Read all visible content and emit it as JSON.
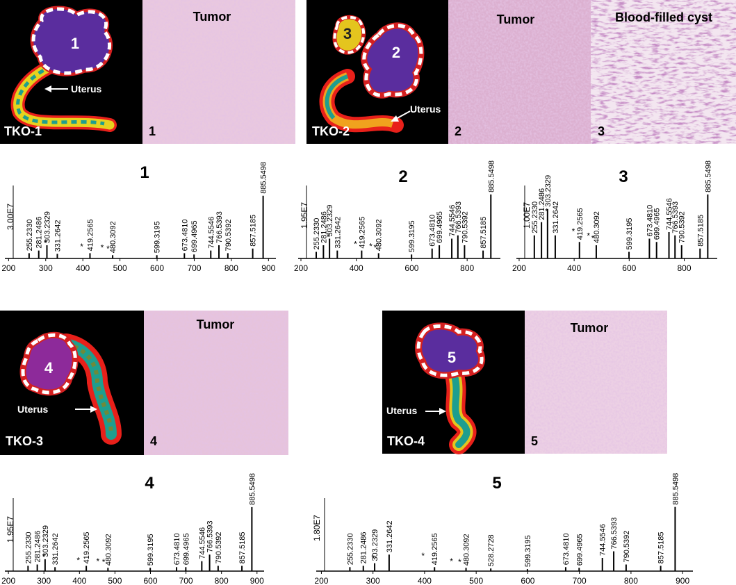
{
  "panels": [
    {
      "mouse": "TKO-1",
      "blob": "1",
      "uterus": "Uterus",
      "histology": [
        {
          "caption": "Tumor",
          "number": "1"
        }
      ]
    },
    {
      "mouse": "TKO-2",
      "blobs": [
        "3",
        "2"
      ],
      "uterus": "Uterus",
      "histology": [
        {
          "caption": "Tumor",
          "number": "2"
        },
        {
          "caption": "Blood-filled cyst",
          "number": "3"
        }
      ]
    },
    {
      "mouse": "TKO-3",
      "blob": "4",
      "uterus": "Uterus",
      "histology": [
        {
          "caption": "Tumor",
          "number": "4"
        }
      ]
    },
    {
      "mouse": "TKO-4",
      "blob": "5",
      "uterus": "Uterus",
      "histology": [
        {
          "caption": "Tumor",
          "number": "5"
        }
      ]
    }
  ],
  "chart_data": [
    {
      "type": "spectrum",
      "title": "1",
      "ylabel": "3.00E7",
      "color": "#000000",
      "xlim": [
        190,
        920
      ],
      "ylim": [
        0,
        30000000
      ],
      "xticks": [
        200,
        300,
        400,
        500,
        600,
        700,
        800,
        900
      ],
      "x": [
        {
          "value": 255.233,
          "label": "255.2330"
        },
        {
          "value": 281.2486,
          "label": "281.2486"
        },
        {
          "value": 303.2329,
          "label": "303.2329"
        },
        {
          "value": 331.2642,
          "label": "331.2642"
        },
        {
          "value": 419.2565,
          "label": "419.2565"
        },
        {
          "value": 480.3092,
          "label": "480.3092"
        },
        {
          "value": 599.3195,
          "label": "599.3195"
        },
        {
          "value": 673.481,
          "label": "673.4810"
        },
        {
          "value": 699.4965,
          "label": "699.4965"
        },
        {
          "value": 744.5546,
          "label": "744.5546"
        },
        {
          "value": 766.5393,
          "label": "766.5393"
        },
        {
          "value": 790.5392,
          "label": "790.5392"
        },
        {
          "value": 857.5185,
          "label": "857.5185"
        },
        {
          "value": 885.5498,
          "label": "885.5498"
        }
      ],
      "values": [
        2400000,
        3600000,
        6000000,
        2100000,
        2400000,
        1500000,
        1500000,
        2400000,
        1800000,
        3600000,
        6000000,
        2400000,
        4500000,
        28500000
      ],
      "annotations": [
        {
          "text": "*",
          "x": 300,
          "y": 5000000
        },
        {
          "text": "*",
          "x": 397,
          "y": 3500000
        },
        {
          "text": "*",
          "x": 452,
          "y": 3000000
        },
        {
          "text": "*",
          "x": 468,
          "y": 2500000
        }
      ]
    },
    {
      "type": "spectrum",
      "title": "2",
      "ylabel": "1.95E7",
      "color": "#000000",
      "xlim": [
        190,
        920
      ],
      "ylim": [
        0,
        19500000
      ],
      "xticks": [
        200,
        400,
        600,
        800
      ],
      "x": [
        {
          "value": 255.233,
          "label": "255.2330"
        },
        {
          "value": 281.2486,
          "label": "281.2486"
        },
        {
          "value": 303.2329,
          "label": "303.2329"
        },
        {
          "value": 331.2642,
          "label": "331.2642"
        },
        {
          "value": 419.2565,
          "label": "419.2565"
        },
        {
          "value": 480.3092,
          "label": "480.3092"
        },
        {
          "value": 599.3195,
          "label": "599.3195"
        },
        {
          "value": 673.481,
          "label": "673.4810"
        },
        {
          "value": 699.4965,
          "label": "699.4965"
        },
        {
          "value": 744.5546,
          "label": "744.5546"
        },
        {
          "value": 766.5393,
          "label": "766.5393"
        },
        {
          "value": 790.5392,
          "label": "790.5392"
        },
        {
          "value": 857.5185,
          "label": "857.5185"
        },
        {
          "value": 885.5498,
          "label": "885.5498"
        }
      ],
      "values": [
        1950000,
        3900000,
        5850000,
        2340000,
        2340000,
        1560000,
        1170000,
        2925000,
        3900000,
        5850000,
        6825000,
        3900000,
        2340000,
        18900000
      ],
      "annotations": [
        {
          "text": "*",
          "x": 300,
          "y": 5000000
        },
        {
          "text": "*",
          "x": 397,
          "y": 3000000
        },
        {
          "text": "*",
          "x": 452,
          "y": 2400000
        },
        {
          "text": "*",
          "x": 468,
          "y": 2000000
        }
      ]
    },
    {
      "type": "spectrum",
      "title": "3",
      "ylabel": "1.00E7",
      "color": "#000000",
      "xlim": [
        190,
        920
      ],
      "ylim": [
        0,
        10000000
      ],
      "xticks": [
        200,
        400,
        600,
        800
      ],
      "x": [
        {
          "value": 255.233,
          "label": "255.2330"
        },
        {
          "value": 281.2486,
          "label": "281.2486"
        },
        {
          "value": 303.2329,
          "label": "303.2329"
        },
        {
          "value": 331.2642,
          "label": "331.2642"
        },
        {
          "value": 419.2565,
          "label": "419.2565"
        },
        {
          "value": 480.3092,
          "label": "480.3092"
        },
        {
          "value": 599.3195,
          "label": "599.3195"
        },
        {
          "value": 673.481,
          "label": "673.4810"
        },
        {
          "value": 699.4965,
          "label": "699.4965"
        },
        {
          "value": 744.5546,
          "label": "744.5546"
        },
        {
          "value": 766.5393,
          "label": "766.5393"
        },
        {
          "value": 790.5392,
          "label": "790.5392"
        },
        {
          "value": 857.5185,
          "label": "857.5185"
        },
        {
          "value": 885.5498,
          "label": "885.5498"
        }
      ],
      "values": [
        3500000,
        5500000,
        7500000,
        3500000,
        2500000,
        2000000,
        1000000,
        3000000,
        2500000,
        4000000,
        3500000,
        2000000,
        1500000,
        9700000
      ],
      "annotations": [
        {
          "text": "*",
          "x": 300,
          "y": 6500000
        },
        {
          "text": "*",
          "x": 397,
          "y": 3500000
        },
        {
          "text": "*",
          "x": 452,
          "y": 2800000
        },
        {
          "text": "*",
          "x": 468,
          "y": 2400000
        }
      ]
    },
    {
      "type": "spectrum",
      "title": "4",
      "ylabel": "1.95E7",
      "color": "#000000",
      "xlim": [
        190,
        920
      ],
      "ylim": [
        0,
        19500000
      ],
      "xticks": [
        200,
        300,
        400,
        500,
        600,
        700,
        800,
        900
      ],
      "x": [
        {
          "value": 255.233,
          "label": "255.2330"
        },
        {
          "value": 281.2486,
          "label": "281.2486"
        },
        {
          "value": 303.2329,
          "label": "303.2329"
        },
        {
          "value": 331.2642,
          "label": "331.2642"
        },
        {
          "value": 419.2565,
          "label": "419.2565"
        },
        {
          "value": 480.3092,
          "label": "480.3092"
        },
        {
          "value": 599.3195,
          "label": "599.3195"
        },
        {
          "value": 673.481,
          "label": "673.4810"
        },
        {
          "value": 699.4965,
          "label": "699.4965"
        },
        {
          "value": 744.5546,
          "label": "744.5546"
        },
        {
          "value": 766.5393,
          "label": "766.5393"
        },
        {
          "value": 790.5392,
          "label": "790.5392"
        },
        {
          "value": 857.5185,
          "label": "857.5185"
        },
        {
          "value": 885.5498,
          "label": "885.5498"
        }
      ],
      "values": [
        1560000,
        1950000,
        3510000,
        1170000,
        1560000,
        975000,
        975000,
        1170000,
        1170000,
        2925000,
        4875000,
        1560000,
        1560000,
        18900000
      ],
      "annotations": [
        {
          "text": "*",
          "x": 300,
          "y": 3000000
        },
        {
          "text": "*",
          "x": 397,
          "y": 2000000
        },
        {
          "text": "*",
          "x": 452,
          "y": 1600000
        },
        {
          "text": "*",
          "x": 468,
          "y": 1400000
        }
      ]
    },
    {
      "type": "spectrum",
      "title": "5",
      "ylabel": "1.80E7",
      "color": "#000000",
      "xlim": [
        190,
        920
      ],
      "ylim": [
        0,
        18000000
      ],
      "xticks": [
        200,
        300,
        400,
        500,
        600,
        700,
        800,
        900
      ],
      "x": [
        {
          "value": 255.233,
          "label": "255.2330"
        },
        {
          "value": 281.2486,
          "label": "281.2486"
        },
        {
          "value": 303.2329,
          "label": "303.2329"
        },
        {
          "value": 331.2642,
          "label": "331.2642"
        },
        {
          "value": 419.2565,
          "label": "419.2565"
        },
        {
          "value": 480.3092,
          "label": "480.3092"
        },
        {
          "value": 528.2728,
          "label": "528.2728"
        },
        {
          "value": 599.3195,
          "label": "599.3195"
        },
        {
          "value": 673.481,
          "label": "673.4810"
        },
        {
          "value": 699.4965,
          "label": "699.4965"
        },
        {
          "value": 744.5546,
          "label": "744.5546"
        },
        {
          "value": 766.5393,
          "label": "766.5393"
        },
        {
          "value": 790.5392,
          "label": "790.5392"
        },
        {
          "value": 857.5185,
          "label": "857.5185"
        },
        {
          "value": 885.5498,
          "label": "885.5498"
        }
      ],
      "values": [
        1080000,
        1440000,
        2160000,
        4500000,
        1080000,
        900000,
        720000,
        540000,
        1080000,
        900000,
        3600000,
        5400000,
        1800000,
        1440000,
        17500000
      ],
      "annotations": [
        {
          "text": "*",
          "x": 300,
          "y": 2500000
        },
        {
          "text": "*",
          "x": 397,
          "y": 3000000
        },
        {
          "text": "*",
          "x": 452,
          "y": 1500000
        },
        {
          "text": "*",
          "x": 468,
          "y": 1300000
        }
      ]
    }
  ]
}
